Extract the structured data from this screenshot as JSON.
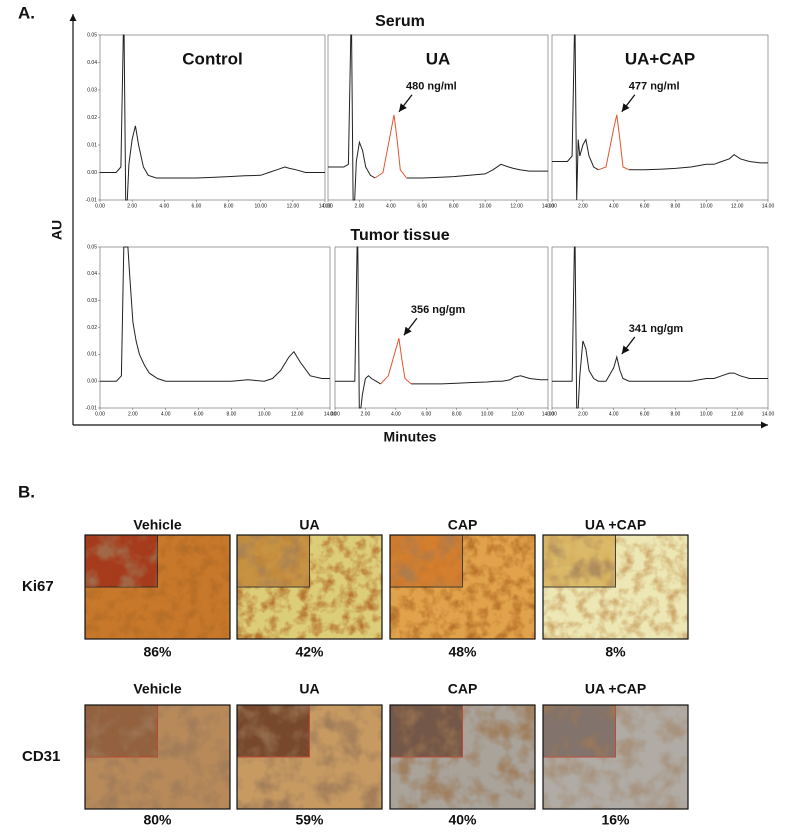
{
  "panel_a": {
    "label": "A.",
    "y_axis_label": "AU",
    "x_axis_label": "Minutes",
    "row_titles": [
      "Serum",
      "Tumor tissue"
    ]
  },
  "chart_data": [
    {
      "type": "line",
      "title": "Control",
      "x": [
        0,
        1,
        1.3,
        1.45,
        1.5,
        1.6,
        1.7,
        1.8,
        2.0,
        2.2,
        2.4,
        2.7,
        3,
        3.5,
        4,
        4.2,
        4.4,
        4.6,
        5,
        6,
        7,
        8,
        9,
        10,
        10.5,
        11,
        11.5,
        11.8,
        12.2,
        12.8,
        13.5,
        14
      ],
      "series": [
        {
          "color": "#222222",
          "values": [
            0,
            0,
            0.002,
            0.05,
            0.05,
            -0.01,
            -0.01,
            0.003,
            0.012,
            0.017,
            0.01,
            0.002,
            -0.001,
            -0.002,
            -0.002,
            -0.002,
            -0.002,
            -0.002,
            -0.002,
            -0.002,
            -0.0018,
            -0.0015,
            -0.0012,
            -0.001,
            0,
            0.001,
            0.002,
            0.0015,
            0.001,
            0,
            0,
            0
          ]
        }
      ],
      "xlim": [
        0,
        14
      ],
      "ylim": [
        -0.01,
        0.05
      ],
      "xticks": [
        {
          "value": 0,
          "label": "0.00"
        },
        {
          "value": 2,
          "label": "2.00"
        },
        {
          "value": 4,
          "label": "4.00"
        },
        {
          "value": 6,
          "label": "6.00"
        },
        {
          "value": 8,
          "label": "8.00"
        },
        {
          "value": 10,
          "label": "10.00"
        },
        {
          "value": 12,
          "label": "12.00"
        },
        {
          "value": 14,
          "label": "14.00"
        }
      ],
      "yticks": [
        -0.01,
        {
          "value": 0,
          "label": "0.00"
        },
        0.01,
        0.02,
        0.03,
        0.04,
        0.05
      ]
    },
    {
      "type": "line",
      "title": "UA",
      "annotation": "480 ng/ml",
      "x": [
        0,
        1,
        1.3,
        1.45,
        1.5,
        1.6,
        1.7,
        1.8,
        2.0,
        2.2,
        2.4,
        2.7,
        3,
        3.5,
        4,
        4.2,
        4.4,
        4.6,
        5,
        6,
        7,
        8,
        9,
        10,
        10.5,
        11,
        11.5,
        11.8,
        12.2,
        12.8,
        13.5,
        14
      ],
      "series": [
        {
          "color": "#222222",
          "values": [
            0.002,
            0.002,
            0.003,
            0.05,
            0.05,
            -0.01,
            -0.01,
            0.004,
            0.011,
            0.008,
            0.002,
            -0.001,
            -0.002,
            null,
            null,
            null,
            null,
            null,
            -0.002,
            -0.002,
            -0.0018,
            -0.0015,
            -0.001,
            -0.0005,
            0.001,
            0.003,
            0.002,
            0.0015,
            0.001,
            0.0005,
            0.0005,
            0.0005
          ]
        },
        {
          "color": "#e2552e",
          "values": [
            null,
            null,
            null,
            null,
            null,
            null,
            null,
            null,
            null,
            null,
            null,
            null,
            -0.002,
            0,
            0.015,
            0.021,
            0.012,
            0.001,
            -0.002,
            null,
            null,
            null,
            null,
            null,
            null,
            null,
            null,
            null,
            null,
            null,
            null,
            null
          ]
        }
      ],
      "xlim": [
        0,
        14
      ],
      "ylim": [
        -0.01,
        0.05
      ],
      "xticks": [
        {
          "value": 0,
          "label": "0.00"
        },
        {
          "value": 2,
          "label": "2.00"
        },
        {
          "value": 4,
          "label": "4.00"
        },
        {
          "value": 6,
          "label": "6.00"
        },
        {
          "value": 8,
          "label": "8.00"
        },
        {
          "value": 10,
          "label": "10.00"
        },
        {
          "value": 12,
          "label": "12.00"
        },
        {
          "value": 14,
          "label": "14.00"
        }
      ]
    },
    {
      "type": "line",
      "title": "UA+CAP",
      "annotation": "477 ng/ml",
      "x": [
        0,
        1,
        1.3,
        1.45,
        1.5,
        1.6,
        1.7,
        1.8,
        2.0,
        2.2,
        2.4,
        2.7,
        3,
        3.5,
        4,
        4.2,
        4.4,
        4.6,
        5,
        6,
        7,
        8,
        9,
        10,
        10.5,
        11,
        11.5,
        11.8,
        12.2,
        12.8,
        13.5,
        14
      ],
      "series": [
        {
          "color": "#222222",
          "values": [
            0.004,
            0.004,
            0.006,
            0.05,
            0.05,
            -0.01,
            0.012,
            0.006,
            0.01,
            0.012,
            0.006,
            0.002,
            0.001,
            null,
            null,
            null,
            null,
            null,
            0.001,
            0.001,
            0.0012,
            0.0015,
            0.002,
            0.003,
            0.003,
            0.004,
            0.005,
            0.0065,
            0.005,
            0.004,
            0.0035,
            0.0035
          ]
        },
        {
          "color": "#e2552e",
          "values": [
            null,
            null,
            null,
            null,
            null,
            null,
            null,
            null,
            null,
            null,
            null,
            null,
            0.001,
            0.002,
            0.016,
            0.021,
            0.012,
            0.002,
            0.001,
            null,
            null,
            null,
            null,
            null,
            null,
            null,
            null,
            null,
            null,
            null,
            null,
            null
          ]
        }
      ],
      "xlim": [
        0,
        14
      ],
      "ylim": [
        -0.01,
        0.05
      ],
      "xticks": [
        {
          "value": 0,
          "label": "0.00"
        },
        {
          "value": 2,
          "label": "2.00"
        },
        {
          "value": 4,
          "label": "4.00"
        },
        {
          "value": 6,
          "label": "6.00"
        },
        {
          "value": 8,
          "label": "8.00"
        },
        {
          "value": 10,
          "label": "10.00"
        },
        {
          "value": 12,
          "label": "12.00"
        },
        {
          "value": 14,
          "label": "14.00"
        }
      ]
    },
    {
      "type": "line",
      "x": [
        0,
        1,
        1.3,
        1.45,
        1.5,
        1.6,
        1.7,
        1.8,
        2.0,
        2.2,
        2.4,
        2.7,
        3,
        3.5,
        4,
        4.2,
        4.4,
        4.6,
        5,
        6,
        7,
        8,
        9,
        10,
        10.5,
        11,
        11.5,
        11.8,
        12.2,
        12.8,
        13.5,
        14
      ],
      "series": [
        {
          "color": "#222222",
          "values": [
            0,
            0,
            0.002,
            0.05,
            0.05,
            0.05,
            0.05,
            0.04,
            0.022,
            0.015,
            0.01,
            0.006,
            0.003,
            0.001,
            0,
            0,
            0,
            0,
            0,
            0,
            0,
            0,
            0.0005,
            0,
            0.001,
            0.004,
            0.009,
            0.011,
            0.007,
            0.002,
            0.001,
            0.001
          ]
        }
      ],
      "xlim": [
        0,
        14
      ],
      "ylim": [
        -0.01,
        0.05
      ],
      "xticks": [
        {
          "value": 0,
          "label": "0.00"
        },
        {
          "value": 2,
          "label": "2.00"
        },
        {
          "value": 4,
          "label": "4.00"
        },
        {
          "value": 6,
          "label": "6.00"
        },
        {
          "value": 8,
          "label": "8.00"
        },
        {
          "value": 10,
          "label": "10.00"
        },
        {
          "value": 12,
          "label": "12.00"
        },
        {
          "value": 14,
          "label": "14.00"
        }
      ],
      "yticks": [
        -0.01,
        {
          "value": 0,
          "label": "0.00"
        },
        0.01,
        0.02,
        0.03,
        0.04,
        0.05
      ]
    },
    {
      "type": "line",
      "annotation": "356 ng/gm",
      "x": [
        0,
        1,
        1.3,
        1.45,
        1.5,
        1.6,
        1.7,
        1.8,
        2.0,
        2.2,
        2.4,
        2.7,
        3,
        3.5,
        4,
        4.2,
        4.4,
        4.6,
        5,
        6,
        7,
        8,
        9,
        10,
        10.5,
        11,
        11.5,
        11.8,
        12.2,
        12.8,
        13.5,
        14
      ],
      "series": [
        {
          "color": "#222222",
          "values": [
            0,
            0,
            0,
            0.05,
            0.05,
            -0.01,
            -0.01,
            -0.005,
            0.001,
            0.002,
            0.001,
            0,
            -0.001,
            null,
            null,
            null,
            null,
            null,
            -0.001,
            -0.001,
            -0.001,
            -0.0008,
            -0.0005,
            -0.0003,
            0,
            0,
            0.0005,
            0.0015,
            0.002,
            0.001,
            0.0005,
            0.0005
          ]
        },
        {
          "color": "#e2552e",
          "values": [
            null,
            null,
            null,
            null,
            null,
            null,
            null,
            null,
            null,
            null,
            null,
            null,
            -0.001,
            0.002,
            0.012,
            0.016,
            0.008,
            0.001,
            -0.001,
            null,
            null,
            null,
            null,
            null,
            null,
            null,
            null,
            null,
            null,
            null,
            null,
            null
          ]
        }
      ],
      "xlim": [
        0,
        14
      ],
      "ylim": [
        -0.01,
        0.05
      ],
      "xticks": [
        {
          "value": 0,
          "label": "0.00"
        },
        {
          "value": 2,
          "label": "2.00"
        },
        {
          "value": 4,
          "label": "4.00"
        },
        {
          "value": 6,
          "label": "6.00"
        },
        {
          "value": 8,
          "label": "8.00"
        },
        {
          "value": 10,
          "label": "10.00"
        },
        {
          "value": 12,
          "label": "12.00"
        },
        {
          "value": 14,
          "label": "14.00"
        }
      ]
    },
    {
      "type": "line",
      "annotation": "341 ng/gm",
      "x": [
        0,
        1,
        1.3,
        1.45,
        1.5,
        1.6,
        1.7,
        1.8,
        2.0,
        2.2,
        2.4,
        2.7,
        3,
        3.5,
        4,
        4.2,
        4.4,
        4.6,
        5,
        6,
        7,
        8,
        9,
        10,
        10.5,
        11,
        11.5,
        11.8,
        12.2,
        12.8,
        13.5,
        14
      ],
      "series": [
        {
          "color": "#222222",
          "values": [
            0,
            0,
            0,
            0.05,
            0.05,
            -0.01,
            -0.01,
            0.002,
            0.015,
            0.012,
            0.004,
            0.001,
            0,
            0,
            0.005,
            0.009,
            0.004,
            0.001,
            0,
            0,
            0,
            0,
            0,
            0.001,
            0.001,
            0.002,
            0.003,
            0.003,
            0.002,
            0.001,
            0.001,
            0.001
          ]
        }
      ],
      "xlim": [
        0,
        14
      ],
      "ylim": [
        -0.01,
        0.05
      ],
      "xticks": [
        {
          "value": 0,
          "label": "0.00"
        },
        {
          "value": 2,
          "label": "2.00"
        },
        {
          "value": 4,
          "label": "4.00"
        },
        {
          "value": 6,
          "label": "6.00"
        },
        {
          "value": 8,
          "label": "8.00"
        },
        {
          "value": 10,
          "label": "10.00"
        },
        {
          "value": 12,
          "label": "12.00"
        },
        {
          "value": 14,
          "label": "14.00"
        }
      ]
    }
  ],
  "panel_b": {
    "label": "B.",
    "rows": [
      {
        "label": "Ki67",
        "columns": [
          "Vehicle",
          "UA",
          "CAP",
          "UA +CAP"
        ],
        "percents": [
          "86%",
          "42%",
          "48%",
          "8%"
        ]
      },
      {
        "label": "CD31",
        "columns": [
          "Vehicle",
          "UA",
          "CAP",
          "UA +CAP"
        ],
        "percents": [
          "80%",
          "59%",
          "40%",
          "16%"
        ]
      }
    ]
  }
}
